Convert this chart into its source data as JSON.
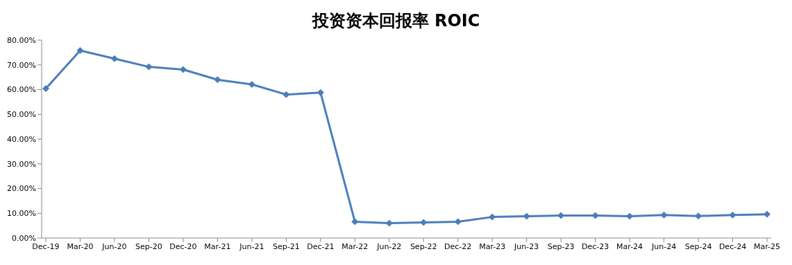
{
  "chart_data": {
    "type": "line",
    "title": "投资资本回报率 ROIC",
    "categories": [
      "Dec-19",
      "Mar-20",
      "Jun-20",
      "Sep-20",
      "Dec-20",
      "Mar-21",
      "Jun-21",
      "Sep-21",
      "Dec-21",
      "Mar-22",
      "Jun-22",
      "Sep-22",
      "Dec-22",
      "Mar-23",
      "Jun-23",
      "Sep-23",
      "Dec-23",
      "Mar-24",
      "Jun-24",
      "Sep-24",
      "Dec-24",
      "Mar-25"
    ],
    "series": [
      {
        "color": "#4a7ebb",
        "values": [
          60.4,
          75.8,
          72.5,
          69.2,
          68.1,
          64.0,
          62.1,
          58.0,
          58.8,
          6.6,
          6.0,
          6.3,
          6.6,
          8.5,
          8.8,
          9.1,
          9.1,
          8.8,
          9.3,
          8.9,
          9.3,
          9.6
        ]
      }
    ],
    "ylim": [
      0,
      80
    ],
    "yticks": [
      {
        "value": 0,
        "label": "0.00%"
      },
      {
        "value": 10,
        "label": "10.00%"
      },
      {
        "value": 20,
        "label": "20.00%"
      },
      {
        "value": 30,
        "label": "30.00%"
      },
      {
        "value": 40,
        "label": "40.00%"
      },
      {
        "value": 50,
        "label": "50.00%"
      },
      {
        "value": 60,
        "label": "60.00%"
      },
      {
        "value": 70,
        "label": "70.00%"
      },
      {
        "value": 80,
        "label": "80.00%"
      }
    ],
    "grid": false,
    "legend": false,
    "marker": "diamond",
    "line_style": "solid"
  }
}
